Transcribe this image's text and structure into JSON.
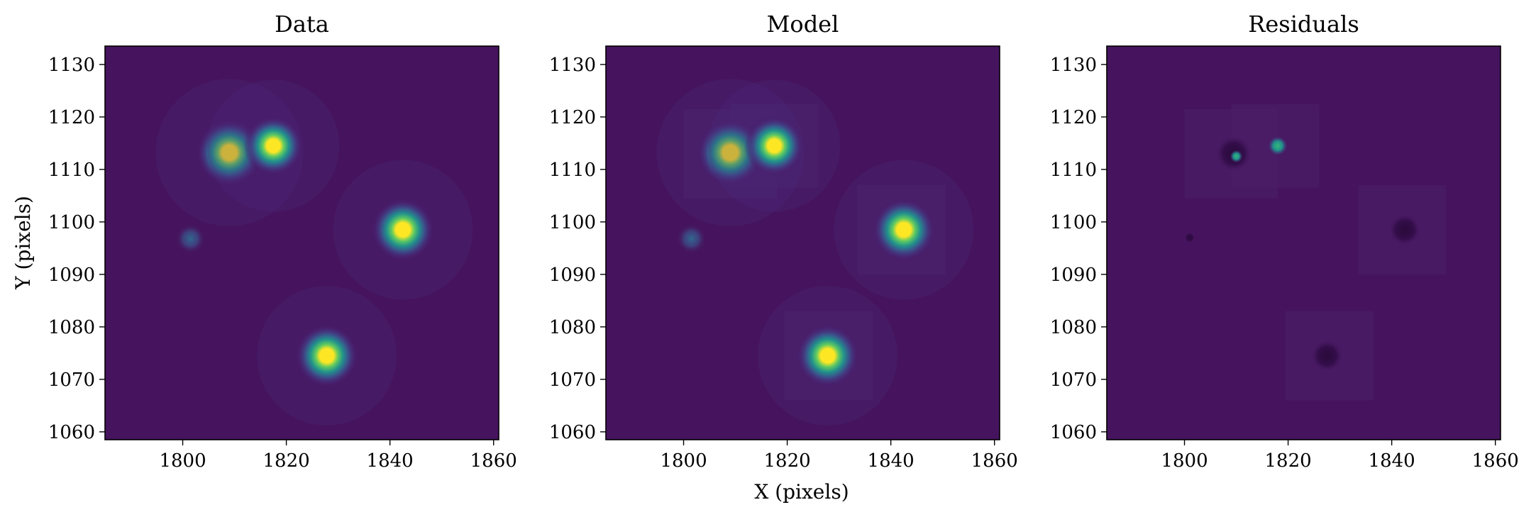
{
  "figure": {
    "shared_xlabel": "X (pixels)",
    "shared_ylabel": "Y (pixels)"
  },
  "colormap": {
    "name": "viridis",
    "background": "#46145e",
    "peak": "#fde725"
  },
  "chart_data": [
    {
      "type": "heatmap",
      "title": "Data",
      "xlabel": "",
      "ylabel": "Y (pixels)",
      "xlim": [
        1785,
        1861
      ],
      "ylim": [
        1058.5,
        1133.5
      ],
      "xticks": [
        1800,
        1820,
        1840,
        1860
      ],
      "yticks": [
        1060,
        1070,
        1080,
        1090,
        1100,
        1110,
        1120,
        1130
      ],
      "sources": [
        {
          "x": 1809,
          "y": 1113.2,
          "amplitude": 1.0,
          "sigma": 1.9
        },
        {
          "x": 1817.5,
          "y": 1114.5,
          "amplitude": 0.85,
          "sigma": 1.7
        },
        {
          "x": 1842.5,
          "y": 1098.5,
          "amplitude": 0.9,
          "sigma": 1.8
        },
        {
          "x": 1827.8,
          "y": 1074.5,
          "amplitude": 0.9,
          "sigma": 1.8
        },
        {
          "x": 1801.5,
          "y": 1096.8,
          "amplitude": 0.2,
          "sigma": 1.3
        }
      ]
    },
    {
      "type": "heatmap",
      "title": "Model",
      "xlabel": "X (pixels)",
      "ylabel": "",
      "xlim": [
        1785,
        1861
      ],
      "ylim": [
        1058.5,
        1133.5
      ],
      "xticks": [
        1800,
        1820,
        1840,
        1860
      ],
      "yticks": [
        1060,
        1070,
        1080,
        1090,
        1100,
        1110,
        1120,
        1130
      ],
      "sources": [
        {
          "x": 1809,
          "y": 1113.2,
          "amplitude": 1.0,
          "sigma": 1.9
        },
        {
          "x": 1817.5,
          "y": 1114.5,
          "amplitude": 0.85,
          "sigma": 1.7
        },
        {
          "x": 1842.5,
          "y": 1098.5,
          "amplitude": 0.9,
          "sigma": 1.8
        },
        {
          "x": 1827.8,
          "y": 1074.5,
          "amplitude": 0.9,
          "sigma": 1.8
        },
        {
          "x": 1801.5,
          "y": 1096.8,
          "amplitude": 0.2,
          "sigma": 1.3
        }
      ],
      "fit_boxes": [
        {
          "x0": 1800,
          "x1": 1818,
          "y0": 1104.5,
          "y1": 1121.5
        },
        {
          "x0": 1809,
          "x1": 1826,
          "y0": 1106.5,
          "y1": 1122.5
        },
        {
          "x0": 1833.5,
          "x1": 1850.5,
          "y0": 1090,
          "y1": 1107
        },
        {
          "x0": 1819.5,
          "x1": 1836.5,
          "y0": 1066,
          "y1": 1083
        }
      ]
    },
    {
      "type": "heatmap",
      "title": "Residuals",
      "xlabel": "",
      "ylabel": "",
      "xlim": [
        1785,
        1861
      ],
      "ylim": [
        1058.5,
        1133.5
      ],
      "xticks": [
        1800,
        1820,
        1840,
        1860
      ],
      "yticks": [
        1060,
        1070,
        1080,
        1090,
        1100,
        1110,
        1120,
        1130
      ],
      "fit_boxes": [
        {
          "x0": 1800,
          "x1": 1818,
          "y0": 1104.5,
          "y1": 1121.5
        },
        {
          "x0": 1809,
          "x1": 1826,
          "y0": 1106.5,
          "y1": 1122.5
        },
        {
          "x0": 1833.5,
          "x1": 1850.5,
          "y0": 1090,
          "y1": 1107
        },
        {
          "x0": 1819.5,
          "x1": 1836.5,
          "y0": 1066,
          "y1": 1083
        }
      ],
      "residual_features": [
        {
          "x": 1809.5,
          "y": 1113.0,
          "radius": 3.4,
          "sign": -1
        },
        {
          "x": 1810.0,
          "y": 1112.5,
          "radius": 1.2,
          "sign": 1
        },
        {
          "x": 1818.0,
          "y": 1114.5,
          "radius": 1.8,
          "sign": 1
        },
        {
          "x": 1842.5,
          "y": 1098.5,
          "radius": 3.0,
          "sign": -1
        },
        {
          "x": 1827.5,
          "y": 1074.5,
          "radius": 3.0,
          "sign": -1
        },
        {
          "x": 1801.0,
          "y": 1097.0,
          "radius": 1.0,
          "sign": -1
        }
      ]
    }
  ]
}
